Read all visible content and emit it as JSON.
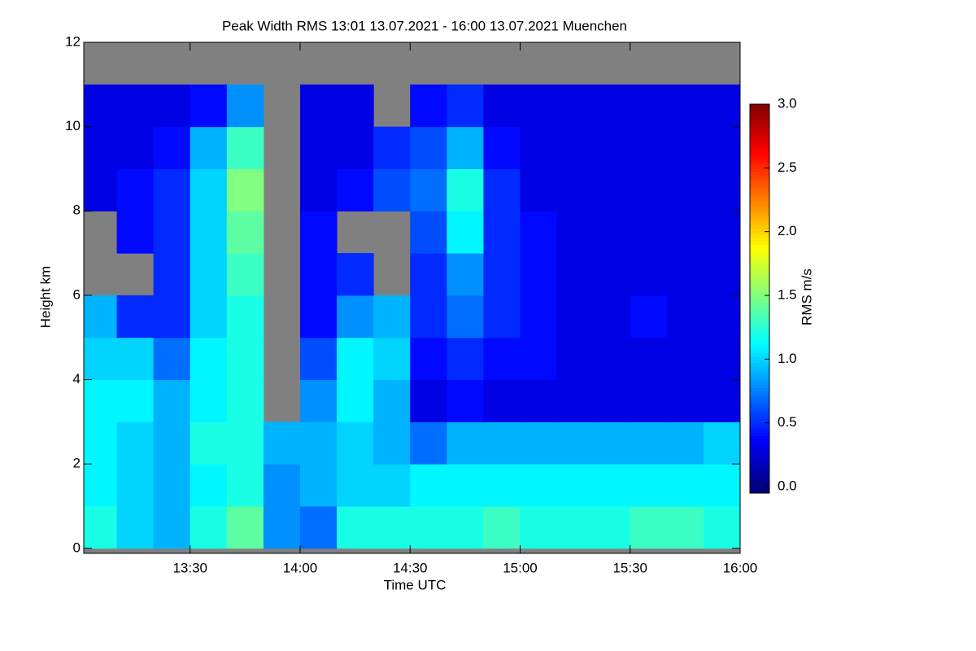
{
  "chart_data": {
    "type": "heatmap",
    "title": "Peak Width RMS   13:01 13.07.2021 - 16:00 13.07.2021 Muenchen",
    "x_label": "Time UTC",
    "y_label": "Height km",
    "colorbar_label": "RMS m/s",
    "colormap": "jet",
    "missing_color": "#808080",
    "xlim": [
      13.0167,
      16.0
    ],
    "xticks": [
      {
        "value": 13.5,
        "label": "13:30"
      },
      {
        "value": 14.0,
        "label": "14:00"
      },
      {
        "value": 14.5,
        "label": "14:30"
      },
      {
        "value": 15.0,
        "label": "15:00"
      },
      {
        "value": 15.5,
        "label": "15:30"
      },
      {
        "value": 16.0,
        "label": "16:00"
      }
    ],
    "ylim": [
      -0.12,
      12
    ],
    "yticks": [
      0,
      2,
      4,
      6,
      8,
      10,
      12
    ],
    "clim": [
      0,
      3
    ],
    "cticks": [
      {
        "value": 0,
        "label": "0.0"
      },
      {
        "value": 0.5,
        "label": "0.5"
      },
      {
        "value": 1,
        "label": "1.0"
      },
      {
        "value": 1.5,
        "label": "1.5"
      },
      {
        "value": 2,
        "label": "2.0"
      },
      {
        "value": 2.5,
        "label": "2.5"
      },
      {
        "value": 3,
        "label": "3.0"
      }
    ],
    "xbins": [
      13.0167,
      13.1667,
      13.3333,
      13.5,
      13.6667,
      13.8333,
      14.0,
      14.1667,
      14.3333,
      14.5,
      14.6667,
      14.8333,
      15.0,
      15.1667,
      15.3333,
      15.5,
      15.6667,
      15.8333,
      16.0
    ],
    "ybins": [
      0,
      1,
      2,
      3,
      4,
      5,
      6,
      7,
      8,
      9,
      10,
      11,
      12
    ],
    "z": [
      [
        1.2,
        1.0,
        0.9,
        1.2,
        1.4,
        0.8,
        0.7,
        1.2,
        1.2,
        1.2,
        1.2,
        1.3,
        1.2,
        1.2,
        1.2,
        1.3,
        1.3,
        1.2
      ],
      [
        1.1,
        1.0,
        0.9,
        1.1,
        1.2,
        0.8,
        0.9,
        1.0,
        1.0,
        1.1,
        1.1,
        1.1,
        1.1,
        1.1,
        1.1,
        1.1,
        1.1,
        1.1
      ],
      [
        1.1,
        1.0,
        0.9,
        1.2,
        1.2,
        0.9,
        0.9,
        1.0,
        0.9,
        0.7,
        0.9,
        0.9,
        0.9,
        0.9,
        0.9,
        0.9,
        0.9,
        1.0
      ],
      [
        1.1,
        1.1,
        0.9,
        1.1,
        1.2,
        null,
        0.8,
        1.1,
        0.9,
        0.3,
        0.4,
        0.3,
        0.3,
        0.3,
        0.3,
        0.3,
        0.3,
        0.3
      ],
      [
        1.0,
        1.0,
        0.7,
        1.1,
        1.2,
        null,
        0.6,
        1.1,
        1.0,
        0.4,
        0.5,
        0.4,
        0.4,
        0.3,
        0.3,
        0.3,
        0.3,
        0.3
      ],
      [
        0.9,
        0.5,
        0.5,
        1.0,
        1.2,
        null,
        0.4,
        0.8,
        0.9,
        0.5,
        0.7,
        0.5,
        0.4,
        0.3,
        0.3,
        0.4,
        0.3,
        0.3
      ],
      [
        null,
        null,
        0.5,
        1.0,
        1.3,
        null,
        0.4,
        0.5,
        null,
        0.5,
        0.8,
        0.5,
        0.4,
        0.3,
        0.3,
        0.3,
        0.3,
        0.3
      ],
      [
        null,
        0.4,
        0.5,
        1.0,
        1.4,
        null,
        0.4,
        null,
        null,
        0.6,
        1.1,
        0.5,
        0.4,
        0.3,
        0.3,
        0.3,
        0.3,
        0.3
      ],
      [
        0.3,
        0.4,
        0.5,
        1.0,
        1.5,
        null,
        0.3,
        0.4,
        0.6,
        0.7,
        1.2,
        0.5,
        0.3,
        0.3,
        0.3,
        0.3,
        0.3,
        0.3
      ],
      [
        0.3,
        0.3,
        0.4,
        0.9,
        1.3,
        null,
        0.3,
        0.3,
        0.5,
        0.6,
        0.9,
        0.4,
        0.3,
        0.3,
        0.3,
        0.3,
        0.3,
        0.3
      ],
      [
        0.3,
        0.3,
        0.3,
        0.4,
        0.8,
        null,
        0.3,
        0.3,
        null,
        0.4,
        0.5,
        0.3,
        0.3,
        0.3,
        0.3,
        0.3,
        0.3,
        0.3
      ],
      [
        null,
        null,
        null,
        null,
        null,
        null,
        null,
        null,
        null,
        null,
        null,
        null,
        null,
        null,
        null,
        null,
        null,
        null
      ]
    ]
  }
}
